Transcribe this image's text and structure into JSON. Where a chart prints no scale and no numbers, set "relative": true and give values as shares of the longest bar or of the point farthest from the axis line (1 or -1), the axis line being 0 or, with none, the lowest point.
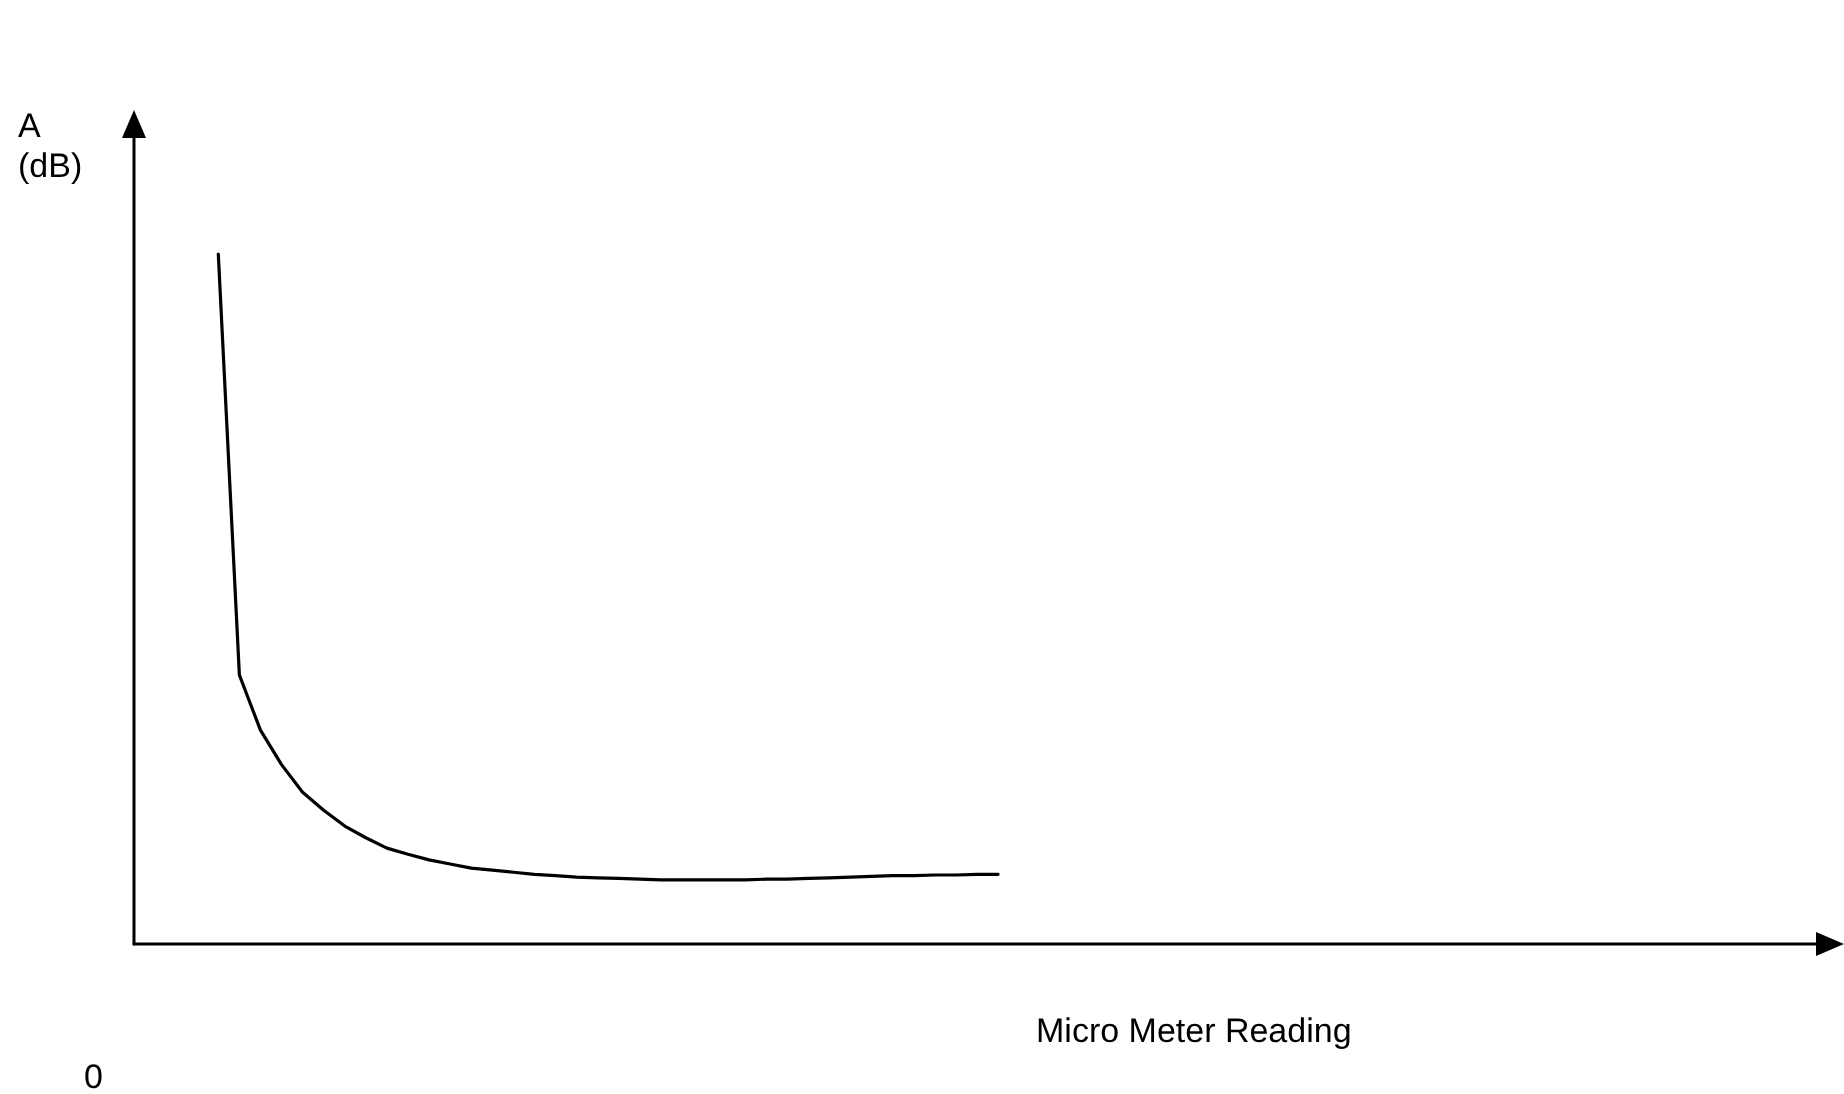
{
  "chart_data": {
    "type": "line",
    "relative": true,
    "xlabel": "Micro Meter Reading",
    "ylabel": "A\n(dB)",
    "annotations": [
      "0"
    ],
    "marker": "none",
    "grid": false,
    "categories": [
      null,
      null,
      null,
      null,
      null,
      null,
      null,
      null,
      null,
      null,
      null,
      null,
      null,
      null,
      null,
      null,
      null,
      null,
      null,
      null,
      null,
      null,
      null,
      null,
      null,
      null,
      null,
      null,
      null,
      null,
      null,
      null,
      null,
      null,
      null,
      null,
      null,
      null,
      null,
      null,
      null,
      null,
      null,
      null,
      null,
      null,
      null,
      null,
      null,
      null,
      null,
      null,
      null,
      null,
      null,
      null,
      null,
      null,
      null,
      null,
      null,
      null,
      null,
      null,
      null,
      null,
      null,
      null,
      null,
      null,
      null,
      null,
      null,
      null,
      null,
      null,
      null,
      null,
      null,
      null,
      null
    ],
    "series": [
      {
        "color": "#000000",
        "values": [
          null,
          null,
          null,
          null,
          1,
          0.39,
          0.31,
          0.26,
          0.22,
          0.194,
          0.171,
          0.154,
          0.139,
          0.13,
          0.122,
          0.116,
          0.11,
          0.107,
          0.104,
          0.101,
          0.099,
          0.097,
          0.096,
          0.095,
          0.094,
          0.093,
          0.093,
          0.093,
          0.093,
          0.093,
          0.094,
          0.094,
          0.095,
          0.096,
          0.097,
          0.098,
          0.099,
          0.099,
          0.1,
          0.1,
          0.101,
          0.101,
          null,
          null,
          null,
          null,
          null,
          null,
          null,
          null,
          null,
          null,
          null,
          null,
          null,
          null,
          null,
          null,
          null,
          null,
          null,
          null,
          null,
          null,
          null,
          null,
          null,
          null,
          null,
          null,
          null,
          null,
          null,
          null,
          null,
          null,
          null,
          null,
          null,
          null,
          null
        ]
      }
    ]
  }
}
